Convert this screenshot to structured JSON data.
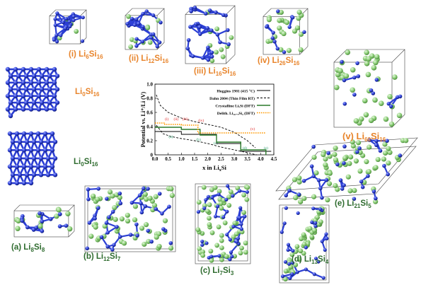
{
  "colors": {
    "si_atom": "#2c3fd4",
    "li_atom": "#8ed07a",
    "bond": "#2c3fd4",
    "orange_label": "#e8842b",
    "green_label": "#2e6b2e",
    "crystalline_line": "#2a7a2a",
    "delith_line": "#ff9900"
  },
  "structures": [
    {
      "id": "i",
      "prefix": "(i) ",
      "formula": "Li",
      "sub1": "6",
      "mid": "Si",
      "sub2": "16",
      "color": "orange"
    },
    {
      "id": "ii",
      "prefix": "(ii) ",
      "formula": "Li",
      "sub1": "12",
      "mid": "Si",
      "sub2": "16",
      "color": "orange"
    },
    {
      "id": "iii",
      "prefix": "(iii) ",
      "formula": "Li",
      "sub1": "16",
      "mid": "Si",
      "sub2": "16",
      "color": "orange"
    },
    {
      "id": "iv",
      "prefix": "(iv) ",
      "formula": "Li",
      "sub1": "26",
      "mid": "Si",
      "sub2": "16",
      "color": "orange"
    },
    {
      "id": "v",
      "prefix": "(v) ",
      "formula": "Li",
      "sub1": "60",
      "mid": "Si",
      "sub2": "16",
      "color": "orange"
    },
    {
      "id": "li0-orange",
      "prefix": "",
      "formula": "Li",
      "sub1": "0",
      "mid": "Si",
      "sub2": "16",
      "color": "orange"
    },
    {
      "id": "li0-green",
      "prefix": "",
      "formula": "Li",
      "sub1": "0",
      "mid": "Si",
      "sub2": "16",
      "color": "green"
    },
    {
      "id": "a",
      "prefix": "(a) ",
      "formula": "Li",
      "sub1": "8",
      "mid": "Si",
      "sub2": "8",
      "color": "green"
    },
    {
      "id": "b",
      "prefix": "(b) ",
      "formula": "Li",
      "sub1": "12",
      "mid": "Si",
      "sub2": "7",
      "color": "green"
    },
    {
      "id": "c",
      "prefix": "(c) ",
      "formula": "Li",
      "sub1": "7",
      "mid": "Si",
      "sub2": "3",
      "color": "green"
    },
    {
      "id": "d",
      "prefix": "(d) ",
      "formula": "Li",
      "sub1": "13",
      "mid": "Si",
      "sub2": "4",
      "color": "green"
    },
    {
      "id": "e",
      "prefix": "(e) ",
      "formula": "Li",
      "sub1": "21",
      "mid": "Si",
      "sub2": "5",
      "color": "green"
    }
  ],
  "chart_data": {
    "type": "line",
    "xlabel": "x in LiₓSi",
    "xlabel_main": "x in Li",
    "xlabel_sub": "x",
    "xlabel_end": "Si",
    "ylabel": "Potential vs. Li⁺/Li (V)",
    "xlim": [
      0,
      4.5
    ],
    "ylim": [
      0,
      1.0
    ],
    "xticks": [
      "0.0",
      "0.5",
      "1.0",
      "1.5",
      "2.0",
      "2.5",
      "3.0",
      "3.5",
      "4.0",
      "4.5"
    ],
    "yticks": [
      "0",
      "0.2",
      "0.4",
      "0.6",
      "0.8",
      "1.0"
    ],
    "legend_position": "top-right",
    "series": [
      {
        "name": "Huggins 1981 (415 °C)",
        "style": "solid-black",
        "x": [
          0,
          1.0,
          1.0,
          2.33,
          2.33,
          3.25,
          3.25,
          4.4
        ],
        "y": [
          0.33,
          0.33,
          0.29,
          0.29,
          0.16,
          0.16,
          0.05,
          0.05
        ]
      },
      {
        "name": "Dahn 2004 (Thin Film RT)",
        "style": "dashed-black-upper",
        "x": [
          0.05,
          0.2,
          0.5,
          1.0,
          1.5,
          2.0,
          2.5,
          3.0,
          3.5,
          3.8
        ],
        "y": [
          0.85,
          0.7,
          0.6,
          0.52,
          0.47,
          0.43,
          0.39,
          0.32,
          0.2,
          0.1
        ]
      },
      {
        "name": "Dahn 2004 (Thin Film RT) lower",
        "style": "dashed-black-lower",
        "x": [
          0.05,
          0.3,
          0.6,
          1.0,
          1.5,
          2.0,
          2.5,
          3.0,
          3.5,
          3.85
        ],
        "y": [
          0.42,
          0.3,
          0.26,
          0.23,
          0.2,
          0.16,
          0.11,
          0.07,
          0.03,
          0.0
        ]
      },
      {
        "name": "Crystalline LiₓSi (DFT)",
        "style": "solid-green",
        "x": [
          0,
          1.0,
          1.0,
          1.71,
          1.71,
          2.33,
          2.33,
          3.25,
          3.25,
          4.2,
          4.2
        ],
        "y": [
          0.39,
          0.39,
          0.36,
          0.36,
          0.28,
          0.28,
          0.18,
          0.18,
          0.07,
          0.07,
          0.0
        ]
      },
      {
        "name": "Delith. Li₁₆₋ₓSi₄ (DFT)",
        "style": "dotted-orange",
        "x": [
          0,
          0.375,
          0.375,
          0.75,
          0.75,
          1.0,
          1.0,
          1.625,
          1.625,
          3.75,
          3.75,
          4.2
        ],
        "y": [
          0.45,
          0.45,
          0.43,
          0.43,
          0.43,
          0.43,
          0.42,
          0.42,
          0.31,
          0.31,
          0.31,
          0.31
        ]
      }
    ],
    "legend_entries": [
      {
        "text": "Huggins 1981 (415 °C)"
      },
      {
        "text": "Dahn 2004 (Thin Film RT)"
      },
      {
        "text": "Crystalline LiₓSi (DFT)"
      },
      {
        "text": "Delith. Li₁₆₋ₓSi₄ (DFT)"
      }
    ],
    "annotations": [
      {
        "text": "(i)",
        "x": 0.45,
        "y": 0.49,
        "color": "red"
      },
      {
        "text": "(ii)",
        "x": 0.8,
        "y": 0.49,
        "color": "red"
      },
      {
        "text": "(iii)",
        "x": 1.15,
        "y": 0.49,
        "color": "red"
      },
      {
        "text": "(iv)",
        "x": 1.75,
        "y": 0.47,
        "color": "red"
      },
      {
        "text": "(v)",
        "x": 3.7,
        "y": 0.35,
        "color": "red"
      },
      {
        "text": "(a)",
        "x": 0.6,
        "y": 0.24,
        "color": "green"
      },
      {
        "text": "(b)",
        "x": 1.65,
        "y": 0.2,
        "color": "green"
      },
      {
        "text": "(c)",
        "x": 2.3,
        "y": 0.15,
        "color": "green"
      },
      {
        "text": "(d)",
        "x": 3.4,
        "y": 0.08,
        "color": "green"
      },
      {
        "text": "(e)",
        "x": 4.2,
        "y": 0.08,
        "color": "green"
      }
    ]
  }
}
